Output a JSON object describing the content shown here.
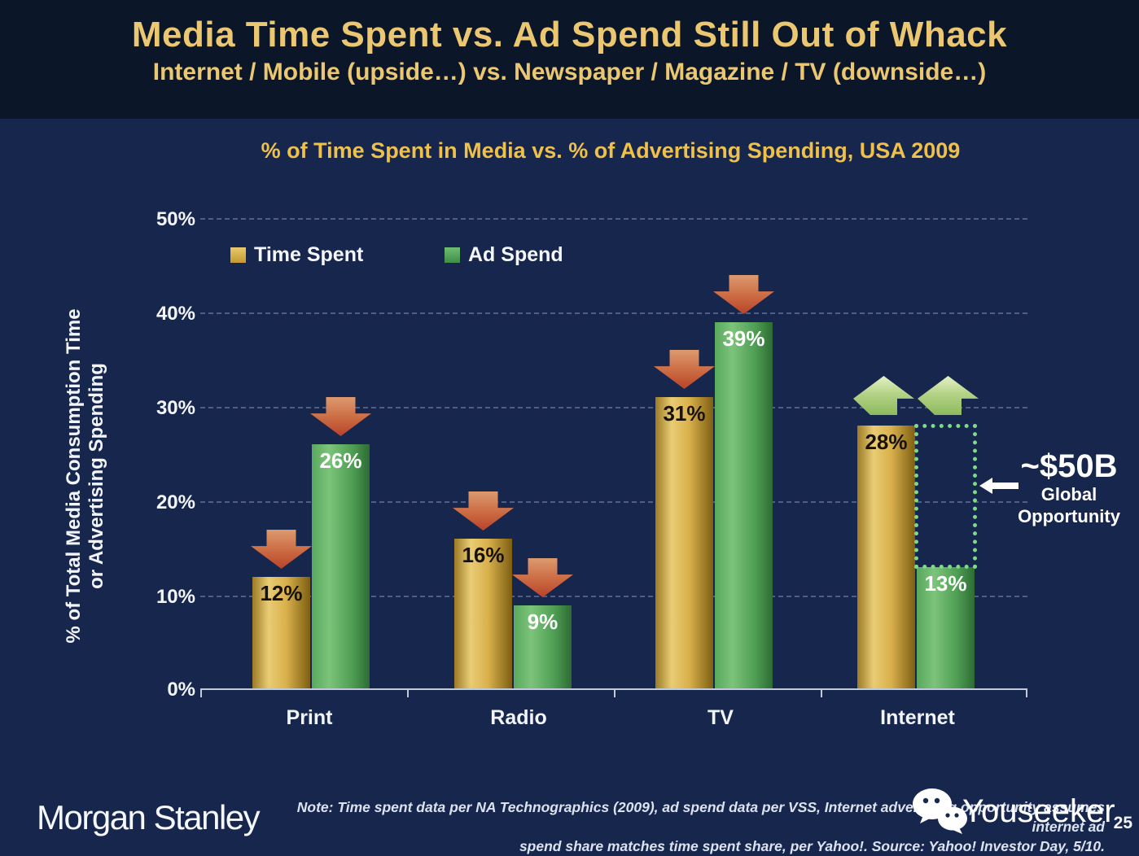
{
  "slide": {
    "title": "Media Time Spent vs. Ad Spend Still Out of Whack",
    "subtitle": "Internet / Mobile (upside…) vs. Newspaper / Magazine / TV (downside…)",
    "page_number": "25"
  },
  "chart_data": {
    "type": "bar",
    "title": "% of Time Spent in Media vs. % of Advertising Spending, USA 2009",
    "ylabel_line1": "% of Total Media Consumption Time",
    "ylabel_line2": "or Advertising Spending",
    "categories": [
      "Print",
      "Radio",
      "TV",
      "Internet"
    ],
    "series": [
      {
        "name": "Time Spent",
        "color": "#d4a73e",
        "values": [
          12,
          16,
          31,
          28
        ],
        "value_labels": [
          "12%",
          "16%",
          "31%",
          "28%"
        ]
      },
      {
        "name": "Ad Spend",
        "color": "#4f9e57",
        "values": [
          26,
          9,
          39,
          13
        ],
        "value_labels": [
          "26%",
          "9%",
          "39%",
          "13%"
        ]
      }
    ],
    "ylim": [
      0,
      50
    ],
    "yticks": [
      "50%",
      "40%",
      "30%",
      "20%",
      "10%",
      "0%"
    ],
    "grid": "dashed-horizontal",
    "legend_position": "top-left-inside",
    "trend_arrows": {
      "Print": "down",
      "Radio": "down",
      "TV": "down",
      "Internet": "up"
    },
    "colors": {
      "background": "#16264d",
      "header_background": "#0b1729",
      "title_gold": "#ecc771",
      "down_arrow": "#c05030",
      "up_arrow": "#8cba5c",
      "opportunity_outline": "#7ddb84"
    }
  },
  "annotation": {
    "value": "~$50B",
    "label_line1": "Global",
    "label_line2": "Opportunity"
  },
  "footer": {
    "logo": "Morgan Stanley",
    "note_line1": "Note: Time spent data per NA Technographics (2009), ad spend data per VSS, Internet advertising opportunity assumes internet ad",
    "note_line2": "spend share matches time spent share, per Yahoo!. Source: Yahoo! Investor Day, 5/10.",
    "watermark": "Youseeker"
  }
}
